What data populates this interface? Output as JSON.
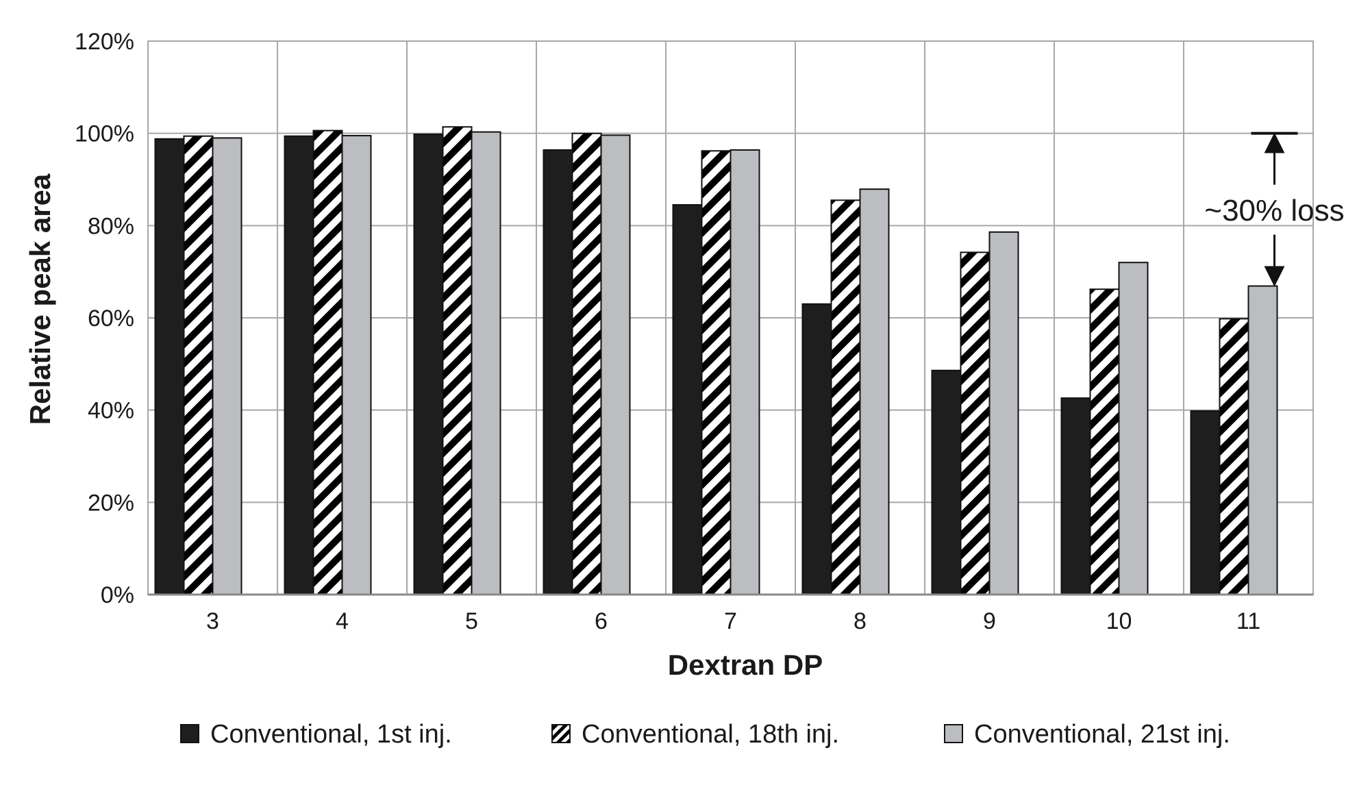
{
  "chart_data": {
    "type": "bar",
    "title": "",
    "xlabel": "Dextran DP",
    "ylabel": "Relative peak area",
    "categories": [
      "3",
      "4",
      "5",
      "6",
      "7",
      "8",
      "9",
      "10",
      "11"
    ],
    "ylim": [
      0,
      120
    ],
    "yticks": [
      0,
      20,
      40,
      60,
      80,
      100,
      120
    ],
    "ytick_labels": [
      "0%",
      "20%",
      "40%",
      "60%",
      "80%",
      "100%",
      "120%"
    ],
    "grid": true,
    "legend_position": "bottom",
    "series": [
      {
        "name": "Conventional, 1st inj.",
        "pattern": "solid",
        "color": "#1e1e1e",
        "values": [
          98.8,
          99.4,
          99.8,
          96.4,
          84.5,
          63.0,
          48.6,
          42.6,
          39.8
        ]
      },
      {
        "name": "Conventional, 18th inj.",
        "pattern": "diagonal-stripes",
        "color": "#000000",
        "values": [
          99.4,
          100.6,
          101.4,
          100.0,
          96.2,
          85.5,
          74.2,
          66.2,
          59.8
        ]
      },
      {
        "name": "Conventional, 21st inj.",
        "pattern": "solid",
        "color": "#bcbdc0",
        "values": [
          99.0,
          99.5,
          100.3,
          99.6,
          96.4,
          87.9,
          78.6,
          72.0,
          66.9
        ]
      }
    ],
    "annotation": {
      "text": "~30% loss",
      "category": "11",
      "from_value": 100,
      "to_value": 66.9
    }
  }
}
